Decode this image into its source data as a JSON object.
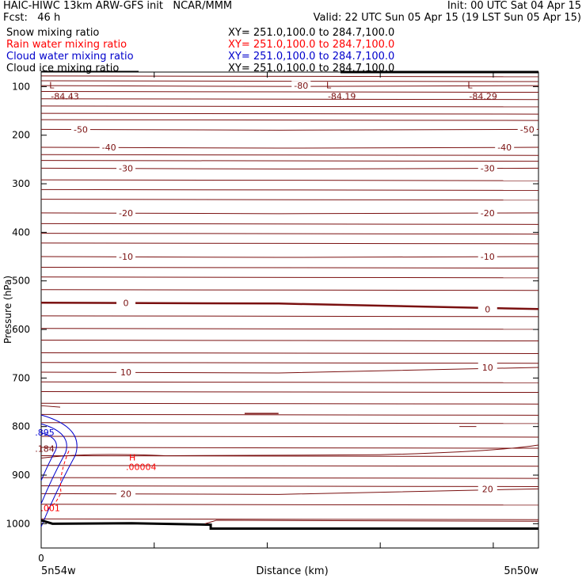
{
  "header": {
    "title": "HAIC-HIWC 13km ARW-GFS init   NCAR/MMM",
    "init": "Init: 00 UTC Sat 04 Apr 15",
    "fcst": "Fcst:   46 h",
    "valid": "Valid: 22 UTC Sun 05 Apr 15 (19 LST Sun 05 Apr 15)"
  },
  "fields": [
    {
      "name": "Snow mixing ratio",
      "xy": "XY= 251.0,100.0 to 284.7,100.0",
      "color": "#000000"
    },
    {
      "name": "Rain water mixing ratio",
      "xy": "XY= 251.0,100.0 to 284.7,100.0",
      "color": "#ff0000"
    },
    {
      "name": "Cloud water mixing ratio",
      "xy": "XY= 251.0,100.0 to 284.7,100.0",
      "color": "#0000cc"
    },
    {
      "name": "Cloud ice mixing ratio",
      "xy": "XY= 251.0,100.0 to 284.7,100.0",
      "color": "#000000"
    }
  ],
  "chart_data": {
    "type": "line",
    "xlabel": "Distance (km)",
    "ylabel": "Pressure (hPa)",
    "xlim": [
      0,
      4.4
    ],
    "ylim": [
      1050,
      70
    ],
    "x_tick_positions": [
      0,
      1,
      2,
      3,
      4
    ],
    "x_tick_label": "0",
    "y_ticks": [
      100,
      200,
      300,
      400,
      500,
      600,
      700,
      800,
      900,
      1000
    ],
    "x_end_labels": {
      "left": "5n54w",
      "right": "5n50w"
    },
    "contour_color": "#7a1010",
    "cloud_water_color": "#0000cc",
    "rain_color": "#ff0000",
    "temperature_contours": [
      {
        "value": -80,
        "p": 98,
        "label": "-80"
      },
      {
        "value": -50,
        "p": 188,
        "label": "-50"
      },
      {
        "value": -40,
        "p": 225,
        "label": "-40"
      },
      {
        "value": -30,
        "p": 268,
        "label": "-30"
      },
      {
        "value": -20,
        "p": 360,
        "label": "-20"
      },
      {
        "value": -10,
        "p": 450,
        "label": "-10"
      },
      {
        "value": 0,
        "p": 545,
        "label": "0"
      },
      {
        "value": 10,
        "p": 688,
        "label": "10"
      },
      {
        "value": 20,
        "p": 938,
        "label": "20"
      }
    ],
    "extra_isotherm_pressures": [
      78,
      88,
      110,
      125,
      140,
      155,
      168,
      240,
      252,
      292,
      312,
      332,
      382,
      402,
      422,
      472,
      492,
      518,
      572,
      598,
      622,
      648,
      668,
      708,
      728,
      752,
      775,
      792,
      820,
      843,
      860,
      880,
      905,
      922,
      960,
      990
    ],
    "minima": [
      {
        "x": 0.1,
        "p": 84,
        "label": "L",
        "value": "-84.43"
      },
      {
        "x": 2.55,
        "p": 84,
        "label": "L",
        "value": "-84.19"
      },
      {
        "x": 3.8,
        "p": 84,
        "label": "L",
        "value": "-84.29"
      }
    ],
    "maxima": [
      {
        "x": 0.75,
        "p": 870,
        "label": "H",
        "value": ".00004"
      }
    ],
    "contour_labels": [
      {
        "x": 0.1,
        "p": 812,
        "value": ".895",
        "color": "#0000cc"
      },
      {
        "x": 0.1,
        "p": 845,
        "value": ".184",
        "color": "#7a1010"
      },
      {
        "x": 0.15,
        "p": 968,
        "value": ".001",
        "color": "#ff0000"
      }
    ]
  }
}
